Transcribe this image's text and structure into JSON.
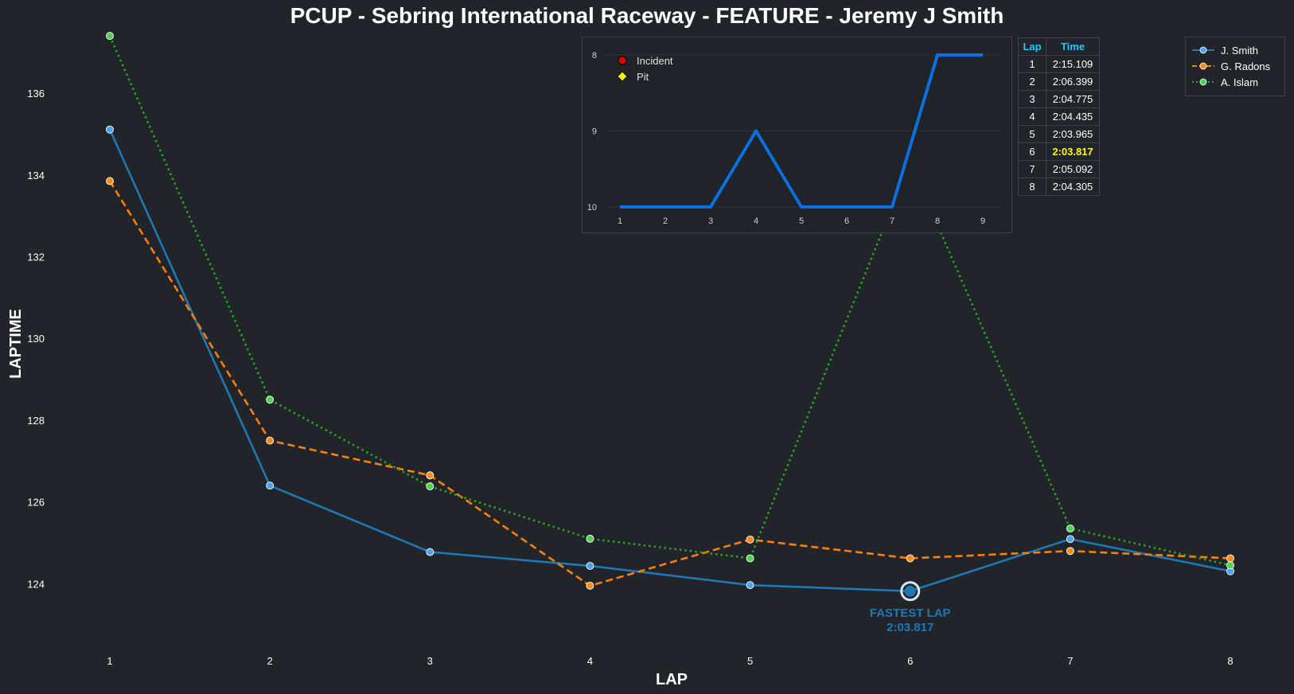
{
  "chart_data": [
    {
      "type": "line",
      "title": "PCUP - Sebring International Raceway - FEATURE - Jeremy J Smith",
      "xlabel": "LAP",
      "ylabel": "LAPTIME",
      "x": [
        1,
        2,
        3,
        4,
        5,
        6,
        7,
        8
      ],
      "xlim": [
        0.7,
        8.3
      ],
      "ylim": [
        122.8,
        137.5
      ],
      "yticks": [
        124,
        126,
        128,
        130,
        132,
        134,
        136
      ],
      "grid": false,
      "legend_position": "top-right",
      "series": [
        {
          "name": "J. Smith",
          "color": "#1f77b4",
          "style": "solid",
          "values": [
            135.109,
            126.399,
            124.775,
            124.435,
            123.965,
            123.817,
            125.092,
            124.305
          ]
        },
        {
          "name": "G. Radons",
          "color": "#ff7f0e",
          "style": "dashed",
          "values": [
            133.85,
            127.5,
            126.65,
            123.95,
            125.08,
            124.62,
            124.8,
            124.62
          ]
        },
        {
          "name": "A. Islam",
          "color": "#2ca02c",
          "style": "dotted",
          "values": [
            137.4,
            128.5,
            126.38,
            125.1,
            124.62,
            134.3,
            125.35,
            124.45
          ]
        }
      ],
      "annotations": [
        {
          "text_line1": "FASTEST LAP",
          "text_line2": "2:03.817",
          "x": 6,
          "y": 123.817,
          "color": "#1f77b4"
        }
      ]
    },
    {
      "type": "line",
      "x": [
        1,
        2,
        3,
        4,
        5,
        6,
        7,
        8,
        9
      ],
      "values": [
        10,
        10,
        10,
        9,
        10,
        10,
        10,
        8,
        8
      ],
      "ylim": [
        10,
        8
      ],
      "yticks": [
        8,
        9,
        10
      ],
      "color": "#0b6fe0",
      "legend": [
        {
          "label": "Incident",
          "marker": "circle",
          "color": "#e00000"
        },
        {
          "label": "Pit",
          "marker": "diamond",
          "color": "#ffff00"
        }
      ]
    },
    {
      "type": "table",
      "columns": [
        "Lap",
        "Time"
      ],
      "rows": [
        [
          "1",
          "2:15.109"
        ],
        [
          "2",
          "2:06.399"
        ],
        [
          "3",
          "2:04.775"
        ],
        [
          "4",
          "2:04.435"
        ],
        [
          "5",
          "2:03.965"
        ],
        [
          "6",
          "2:03.817"
        ],
        [
          "7",
          "2:05.092"
        ],
        [
          "8",
          "2:04.305"
        ]
      ],
      "best_row": 5,
      "best_color": "#ffff00"
    }
  ]
}
